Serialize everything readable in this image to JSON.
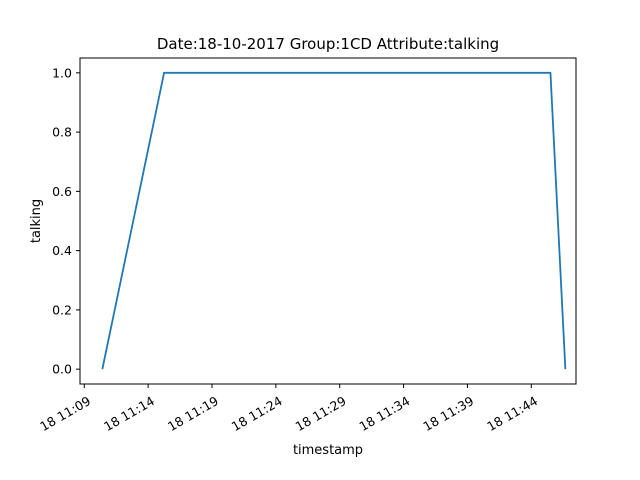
{
  "chart_data": {
    "type": "line",
    "title": "Date:18-10-2017  Group:1CD Attribute:talking",
    "xlabel": "timestamp",
    "ylabel": "talking",
    "x_axis_type": "datetime",
    "x": [
      "2017-10-18 11:10:25",
      "2017-10-18 11:15:15",
      "2017-10-18 11:45:30",
      "2017-10-18 11:46:40"
    ],
    "series": [
      {
        "values": [
          0,
          1,
          1,
          0
        ],
        "color": "#1f77b4"
      }
    ],
    "xlim": [
      "2017-10-18 11:08:40",
      "2017-10-18 11:47:30"
    ],
    "ylim": [
      -0.05,
      1.05
    ],
    "x_ticks": [
      "2017-10-18 11:09:00",
      "2017-10-18 11:14:00",
      "2017-10-18 11:19:00",
      "2017-10-18 11:24:00",
      "2017-10-18 11:29:00",
      "2017-10-18 11:34:00",
      "2017-10-18 11:39:00",
      "2017-10-18 11:44:00"
    ],
    "x_tick_labels": [
      "18 11:09",
      "18 11:14",
      "18 11:19",
      "18 11:24",
      "18 11:29",
      "18 11:34",
      "18 11:39",
      "18 11:44"
    ],
    "y_ticks": [
      0.0,
      0.2,
      0.4,
      0.6,
      0.8,
      1.0
    ],
    "y_tick_labels": [
      "0.0",
      "0.2",
      "0.4",
      "0.6",
      "0.8",
      "1.0"
    ],
    "grid": false,
    "legend": "none"
  }
}
